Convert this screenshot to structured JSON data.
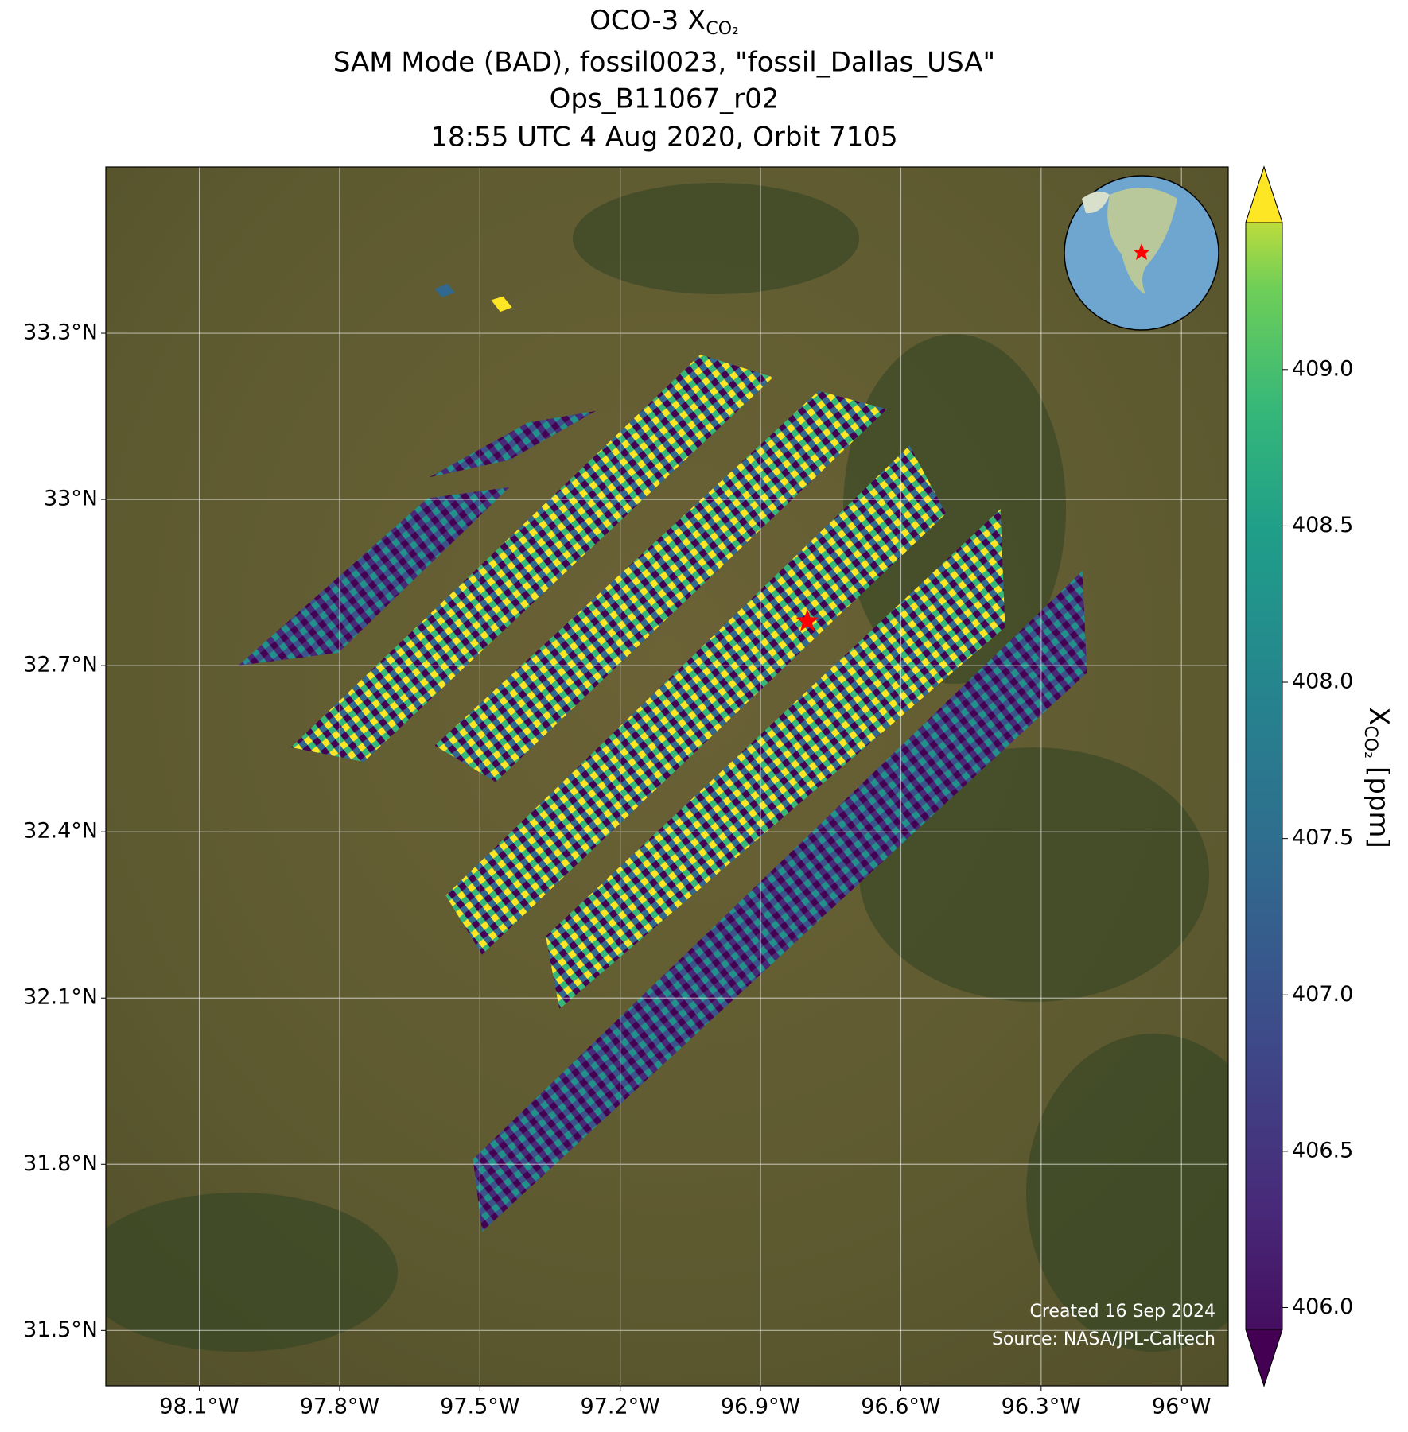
{
  "chart_data": {
    "type": "map",
    "title": [
      "OCO-3 X",
      "SAM Mode (BAD), fossil0023, \"fossil_Dallas_USA\"",
      "Ops_B11067_r02",
      "18:55 UTC 4 Aug 2020, Orbit 7105"
    ],
    "title_subscript": "CO₂",
    "xlim": [
      -98.3,
      -95.9
    ],
    "ylim": [
      31.4,
      33.6
    ],
    "xticks": [
      {
        "value": -98.1,
        "label": "98.1°W"
      },
      {
        "value": -97.8,
        "label": "97.8°W"
      },
      {
        "value": -97.5,
        "label": "97.5°W"
      },
      {
        "value": -97.2,
        "label": "97.2°W"
      },
      {
        "value": -96.9,
        "label": "96.9°W"
      },
      {
        "value": -96.6,
        "label": "96.6°W"
      },
      {
        "value": -96.3,
        "label": "96.3°W"
      },
      {
        "value": -96.0,
        "label": "96°W"
      }
    ],
    "yticks": [
      {
        "value": 31.5,
        "label": "31.5°N"
      },
      {
        "value": 31.8,
        "label": "31.8°N"
      },
      {
        "value": 32.1,
        "label": "32.1°N"
      },
      {
        "value": 32.4,
        "label": "32.4°N"
      },
      {
        "value": 32.7,
        "label": "32.7°N"
      },
      {
        "value": 33.0,
        "label": "33°N"
      },
      {
        "value": 33.3,
        "label": "33.3°N"
      }
    ],
    "grid": true,
    "marker": {
      "lon": -96.8,
      "lat": 32.78,
      "color": "#ff0000"
    },
    "colorbar": {
      "label": "X",
      "label_subscript": "CO₂",
      "label_unit": "[ppm]",
      "colormap": "viridis",
      "lim": [
        405.93,
        409.47
      ],
      "ticks": [
        {
          "value": 406.0,
          "label": "406.0"
        },
        {
          "value": 406.5,
          "label": "406.5"
        },
        {
          "value": 407.0,
          "label": "407.0"
        },
        {
          "value": 407.5,
          "label": "407.5"
        },
        {
          "value": 408.0,
          "label": "408.0"
        },
        {
          "value": 408.5,
          "label": "408.5"
        },
        {
          "value": 409.0,
          "label": "409.0"
        }
      ]
    },
    "credits": [
      "Created 16 Sep 2024",
      "Source: NASA/JPL-Caltech"
    ]
  }
}
